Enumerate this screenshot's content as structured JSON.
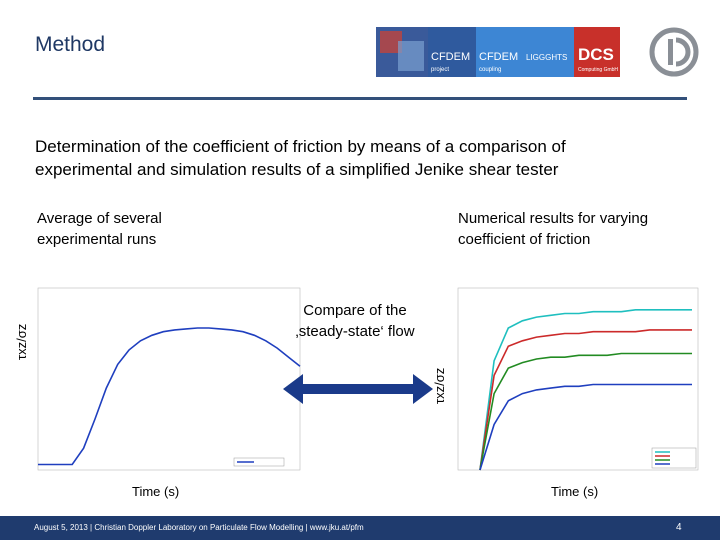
{
  "slide": {
    "title": "Method",
    "intro_line1": "Determination of the coefficient of friction by means of a comparison of",
    "intro_line2": "experimental and simulation results of a simplified Jenike shear tester",
    "left_caption_line1": "Average of several",
    "left_caption_line2": "experimental runs",
    "right_caption_line1": "Numerical results for varying",
    "right_caption_line2": "coefficient of friction",
    "compare_line1": "Compare of the",
    "compare_line2": "‚steady-state‘ flow"
  },
  "logos": {
    "cfdem_project": "CFDEM",
    "cfdem_project_sub": "project",
    "cfdem_coupling": "CFDEM",
    "cfdem_coupling_sub": "coupling",
    "liggghts": "LIGGGHTS",
    "dcs": "DCS",
    "dcs_sub": "Computing GmbH"
  },
  "chart_data": [
    {
      "type": "line",
      "name": "experimental",
      "xlabel": "Time (s)",
      "ylabel": "τxz/σz",
      "series": [
        {
          "values": [
            0.03,
            0.03,
            0.03,
            0.03,
            0.12,
            0.28,
            0.45,
            0.58,
            0.66,
            0.71,
            0.74,
            0.76,
            0.77,
            0.775,
            0.78,
            0.78,
            0.775,
            0.77,
            0.76,
            0.74,
            0.71,
            0.67,
            0.62,
            0.57
          ]
        }
      ],
      "color": "#1f3fbf"
    },
    {
      "type": "line",
      "name": "numerical",
      "xlabel": "Time (s)",
      "ylabel": "τxz/σz",
      "series": [
        {
          "color": "#1fbfbf",
          "values": [
            0.0,
            0.6,
            0.78,
            0.82,
            0.84,
            0.85,
            0.86,
            0.86,
            0.87,
            0.87,
            0.87,
            0.88,
            0.88,
            0.88,
            0.88,
            0.88
          ]
        },
        {
          "color": "#cc2a2a",
          "values": [
            0.0,
            0.52,
            0.68,
            0.71,
            0.73,
            0.74,
            0.75,
            0.75,
            0.76,
            0.76,
            0.76,
            0.76,
            0.77,
            0.77,
            0.77,
            0.77
          ]
        },
        {
          "color": "#228b22",
          "values": [
            0.0,
            0.42,
            0.56,
            0.59,
            0.61,
            0.62,
            0.62,
            0.63,
            0.63,
            0.63,
            0.64,
            0.64,
            0.64,
            0.64,
            0.64,
            0.64
          ]
        },
        {
          "color": "#1f3fbf",
          "values": [
            0.0,
            0.25,
            0.38,
            0.42,
            0.44,
            0.45,
            0.46,
            0.46,
            0.47,
            0.47,
            0.47,
            0.47,
            0.47,
            0.47,
            0.47,
            0.47
          ]
        }
      ]
    }
  ],
  "footer": {
    "text": "August 5, 2013 | Christian Doppler Laboratory on Particulate Flow Modelling | www.jku.at/pfm",
    "page": "4"
  },
  "colors": {
    "title": "#1f3864",
    "rule": "#33507a",
    "footer": "#1f3b6e",
    "arrow": "#1a3a8a"
  }
}
